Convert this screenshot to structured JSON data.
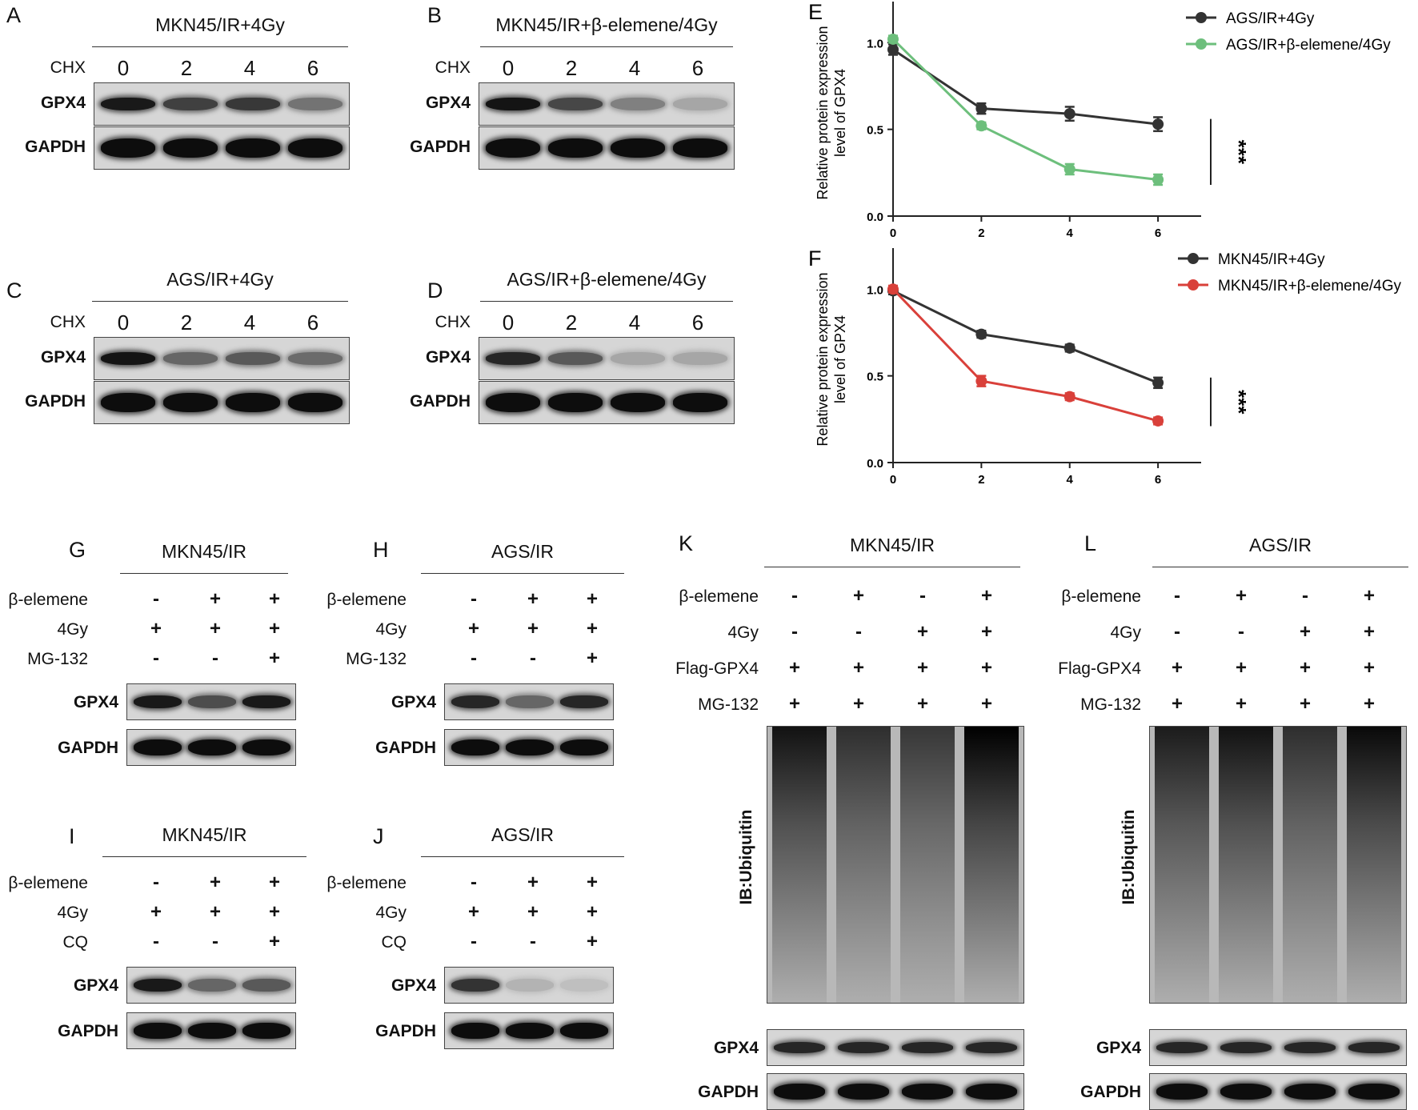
{
  "panels": {
    "A": {
      "letter": "A",
      "title": "MKN45/IR+4Gy",
      "row_label": "CHX",
      "times": [
        "0",
        "2",
        "4",
        "6"
      ],
      "bands": [
        "GPX4",
        "GAPDH"
      ]
    },
    "B": {
      "letter": "B",
      "title": "MKN45/IR+β-elemene/4Gy",
      "row_label": "CHX",
      "times": [
        "0",
        "2",
        "4",
        "6"
      ],
      "bands": [
        "GPX4",
        "GAPDH"
      ]
    },
    "C": {
      "letter": "C",
      "title": "AGS/IR+4Gy",
      "row_label": "CHX",
      "times": [
        "0",
        "2",
        "4",
        "6"
      ],
      "bands": [
        "GPX4",
        "GAPDH"
      ]
    },
    "D": {
      "letter": "D",
      "title": "AGS/IR+β-elemene/4Gy",
      "row_label": "CHX",
      "times": [
        "0",
        "2",
        "4",
        "6"
      ],
      "bands": [
        "GPX4",
        "GAPDH"
      ]
    },
    "G": {
      "letter": "G",
      "title": "MKN45/IR",
      "rows": [
        {
          "label": "β-elemene",
          "marks": [
            "-",
            "+",
            "+"
          ]
        },
        {
          "label": "4Gy",
          "marks": [
            "+",
            "+",
            "+"
          ]
        },
        {
          "label": "MG-132",
          "marks": [
            "-",
            "-",
            "+"
          ]
        }
      ],
      "bands": [
        "GPX4",
        "GAPDH"
      ]
    },
    "H": {
      "letter": "H",
      "title": "AGS/IR",
      "rows": [
        {
          "label": "β-elemene",
          "marks": [
            "-",
            "+",
            "+"
          ]
        },
        {
          "label": "4Gy",
          "marks": [
            "+",
            "+",
            "+"
          ]
        },
        {
          "label": "MG-132",
          "marks": [
            "-",
            "-",
            "+"
          ]
        }
      ],
      "bands": [
        "GPX4",
        "GAPDH"
      ]
    },
    "I": {
      "letter": "I",
      "title": "MKN45/IR",
      "rows": [
        {
          "label": "β-elemene",
          "marks": [
            "-",
            "+",
            "+"
          ]
        },
        {
          "label": "4Gy",
          "marks": [
            "+",
            "+",
            "+"
          ]
        },
        {
          "label": "CQ",
          "marks": [
            "-",
            "-",
            "+"
          ]
        }
      ],
      "bands": [
        "GPX4",
        "GAPDH"
      ]
    },
    "J": {
      "letter": "J",
      "title": "AGS/IR",
      "rows": [
        {
          "label": "β-elemene",
          "marks": [
            "-",
            "+",
            "+"
          ]
        },
        {
          "label": "4Gy",
          "marks": [
            "+",
            "+",
            "+"
          ]
        },
        {
          "label": "CQ",
          "marks": [
            "-",
            "-",
            "+"
          ]
        }
      ],
      "bands": [
        "GPX4",
        "GAPDH"
      ]
    },
    "K": {
      "letter": "K",
      "title": "MKN45/IR",
      "rows": [
        {
          "label": "β-elemene",
          "marks": [
            "-",
            "+",
            "-",
            "+"
          ]
        },
        {
          "label": "4Gy",
          "marks": [
            "-",
            "-",
            "+",
            "+"
          ]
        },
        {
          "label": "Flag-GPX4",
          "marks": [
            "+",
            "+",
            "+",
            "+"
          ]
        },
        {
          "label": "MG-132",
          "marks": [
            "+",
            "+",
            "+",
            "+"
          ]
        }
      ],
      "ib_label": "IB:Ubiquitin",
      "bands": [
        "GPX4",
        "GAPDH"
      ]
    },
    "L": {
      "letter": "L",
      "title": "AGS/IR",
      "rows": [
        {
          "label": "β-elemene",
          "marks": [
            "-",
            "+",
            "-",
            "+"
          ]
        },
        {
          "label": "4Gy",
          "marks": [
            "-",
            "-",
            "+",
            "+"
          ]
        },
        {
          "label": "Flag-GPX4",
          "marks": [
            "+",
            "+",
            "+",
            "+"
          ]
        },
        {
          "label": "MG-132",
          "marks": [
            "+",
            "+",
            "+",
            "+"
          ]
        }
      ],
      "ib_label": "IB:Ubiquitin",
      "bands": [
        "GPX4",
        "GAPDH"
      ]
    }
  },
  "chart_data": [
    {
      "panel": "E",
      "type": "line",
      "ylabel": "Relative protein expression level of GPX4",
      "ylabel_lines": [
        "Relative protein expression",
        "level of GPX4"
      ],
      "x": [
        0,
        2,
        4,
        6
      ],
      "xticks": [
        "0",
        "2",
        "4",
        "6"
      ],
      "ylim": [
        0,
        1.0
      ],
      "yticks": [
        "0.0",
        "0.5",
        "1.0"
      ],
      "significance": "***",
      "series": [
        {
          "name": "AGS/IR+4Gy",
          "color": "#333333",
          "values": [
            0.96,
            0.62,
            0.59,
            0.53
          ],
          "errors": [
            0.03,
            0.03,
            0.04,
            0.04
          ]
        },
        {
          "name": "AGS/IR+β-elemene/4Gy",
          "color": "#6dbf7c",
          "values": [
            1.02,
            0.52,
            0.27,
            0.21
          ],
          "errors": [
            0.02,
            0.02,
            0.03,
            0.03
          ]
        }
      ],
      "legend": "top-right"
    },
    {
      "panel": "F",
      "type": "line",
      "ylabel": "Relative protein expression level of GPX4",
      "ylabel_lines": [
        "Relative protein expression",
        "level of GPX4"
      ],
      "x": [
        0,
        2,
        4,
        6
      ],
      "xticks": [
        "0",
        "2",
        "4",
        "6"
      ],
      "ylim": [
        0,
        1.0
      ],
      "yticks": [
        "0.0",
        "0.5",
        "1.0"
      ],
      "significance": "***",
      "series": [
        {
          "name": "MKN45/IR+4Gy",
          "color": "#333333",
          "values": [
            0.99,
            0.74,
            0.66,
            0.46
          ],
          "errors": [
            0.02,
            0.02,
            0.02,
            0.03
          ]
        },
        {
          "name": "MKN45/IR+β-elemene/4Gy",
          "color": "#d9403a",
          "values": [
            1.0,
            0.47,
            0.38,
            0.24
          ],
          "errors": [
            0.02,
            0.03,
            0.02,
            0.02
          ]
        }
      ],
      "legend": "top-right"
    }
  ]
}
